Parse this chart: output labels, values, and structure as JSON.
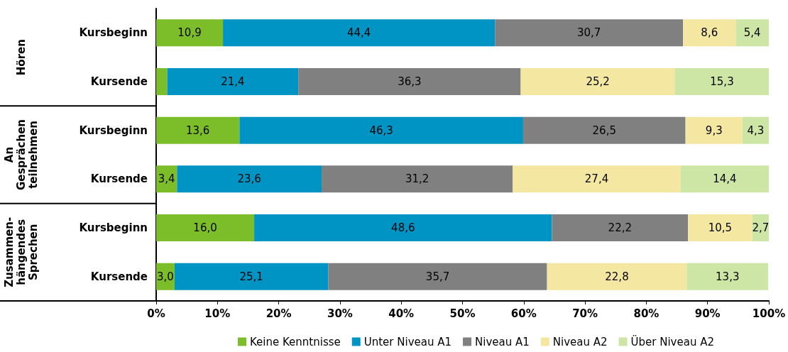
{
  "chart_data": {
    "type": "bar",
    "orientation": "horizontal",
    "stacked": true,
    "categories": [
      "Kursbeginn",
      "Kursende",
      "Kursbeginn",
      "Kursende",
      "Kursbeginn",
      "Kursende"
    ],
    "annotations": [
      "Hören",
      "An Gesprächen teilnehmen",
      "Zusammen-hängendes Sprechen"
    ],
    "series": [
      {
        "name": "Keine Kenntnisse",
        "color": "#7cbd2a",
        "values": [
          10.9,
          1.8,
          13.6,
          3.4,
          16.0,
          3.0
        ],
        "value_labels": [
          "10,9",
          null,
          "13,6",
          "3,4",
          "16,0",
          "3,0"
        ]
      },
      {
        "name": "Unter Niveau A1",
        "color": "#0094c4",
        "values": [
          44.4,
          21.4,
          46.3,
          23.6,
          48.6,
          25.1
        ],
        "value_labels": [
          "44,4",
          "21,4",
          "46,3",
          "23,6",
          "48,6",
          "25,1"
        ]
      },
      {
        "name": "Niveau A1",
        "color": "#808080",
        "values": [
          30.7,
          36.3,
          26.5,
          31.2,
          22.2,
          35.7
        ],
        "value_labels": [
          "30,7",
          "36,3",
          "26,5",
          "31,2",
          "22,2",
          "35,7"
        ]
      },
      {
        "name": "Niveau A2",
        "color": "#f3e7a2",
        "values": [
          8.6,
          25.2,
          9.3,
          27.4,
          10.5,
          22.8
        ],
        "value_labels": [
          "8,6",
          "25,2",
          "9,3",
          "27,4",
          "10,5",
          "22,8"
        ]
      },
      {
        "name": "Über Niveau A2",
        "color": "#cde6a6",
        "values": [
          5.4,
          15.3,
          4.3,
          14.4,
          2.7,
          13.3
        ],
        "value_labels": [
          "5,4",
          "15,3",
          "4,3",
          "14,4",
          "2,7",
          "13,3"
        ]
      }
    ],
    "xlim": [
      0,
      100
    ],
    "xticks": [
      {
        "value": 0,
        "label": "0%"
      },
      {
        "value": 10,
        "label": "10%"
      },
      {
        "value": 20,
        "label": "20%"
      },
      {
        "value": 30,
        "label": "30%"
      },
      {
        "value": 40,
        "label": "40%"
      },
      {
        "value": 50,
        "label": "50%"
      },
      {
        "value": 60,
        "label": "60%"
      },
      {
        "value": 70,
        "label": "70%"
      },
      {
        "value": 80,
        "label": "80%"
      },
      {
        "value": 90,
        "label": "90%"
      },
      {
        "value": 100,
        "label": "100%"
      }
    ],
    "grid": false,
    "legend": "bottom"
  }
}
